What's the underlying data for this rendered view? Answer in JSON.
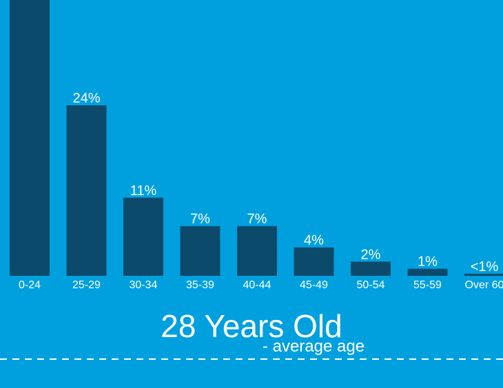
{
  "chart_data": {
    "type": "bar",
    "categories": [
      "0-24",
      "25-29",
      "30-34",
      "35-39",
      "40-44",
      "45-49",
      "50-54",
      "55-59",
      "Over 60"
    ],
    "values": [
      44,
      24,
      11,
      7,
      7,
      4,
      2,
      1,
      0.3
    ],
    "value_labels": [
      null,
      "24%",
      "11%",
      "7%",
      "7%",
      "4%",
      "2%",
      "1%",
      "<1%"
    ],
    "color": "#0b4a6b",
    "annotations": [
      "28 Years Old",
      "- average age"
    ]
  }
}
